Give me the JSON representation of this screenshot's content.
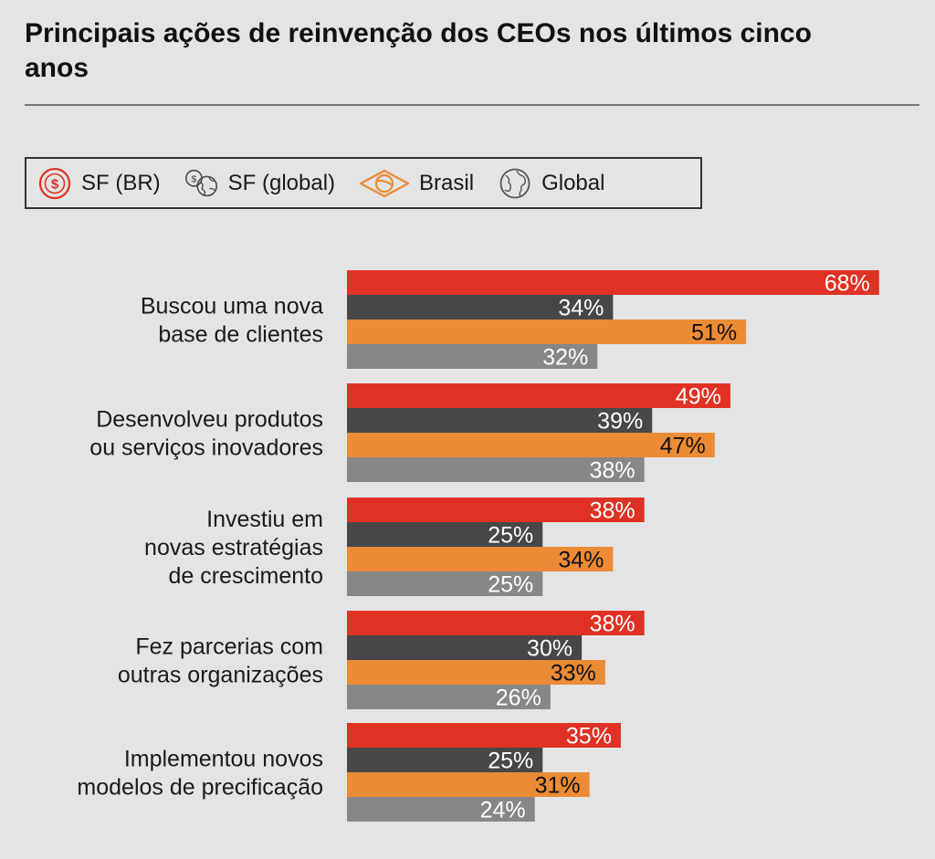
{
  "title": "Principais ações de reinvenção dos CEOs nos últimos cinco anos",
  "legend": [
    {
      "label": "SF (BR)",
      "icon": "dollar-circle-icon"
    },
    {
      "label": "SF (global)",
      "icon": "coins-globe-icon"
    },
    {
      "label": "Brasil",
      "icon": "brazil-flag-icon"
    },
    {
      "label": "Global",
      "icon": "globe-icon"
    }
  ],
  "colors": {
    "sf_br": "#e03224",
    "sf_global": "#474747",
    "brasil": "#ec8b35",
    "global": "#878787",
    "label_light": "#ffffff",
    "label_dark": "#111111",
    "background": "#e4e4e4"
  },
  "chart_data": {
    "type": "bar",
    "orientation": "horizontal",
    "title": "Principais ações de reinvenção dos CEOs nos últimos cinco anos",
    "categories": [
      [
        "Buscou uma nova",
        "base de clientes"
      ],
      [
        "Desenvolveu produtos",
        "ou serviços inovadores"
      ],
      [
        "Investiu em",
        "novas estratégias",
        "de crescimento"
      ],
      [
        "Fez parcerias com",
        "outras organizações"
      ],
      [
        "Implementou novos",
        "modelos de precificação"
      ]
    ],
    "series": [
      {
        "name": "SF (BR)",
        "values": [
          68,
          49,
          38,
          38,
          35
        ]
      },
      {
        "name": "SF (global)",
        "values": [
          34,
          39,
          25,
          30,
          25
        ]
      },
      {
        "name": "Brasil",
        "values": [
          51,
          47,
          34,
          33,
          31
        ]
      },
      {
        "name": "Global",
        "values": [
          32,
          38,
          25,
          26,
          24
        ]
      }
    ],
    "value_suffix": "%",
    "xlim": [
      0,
      100
    ],
    "grid": false,
    "legend_position": "top"
  }
}
